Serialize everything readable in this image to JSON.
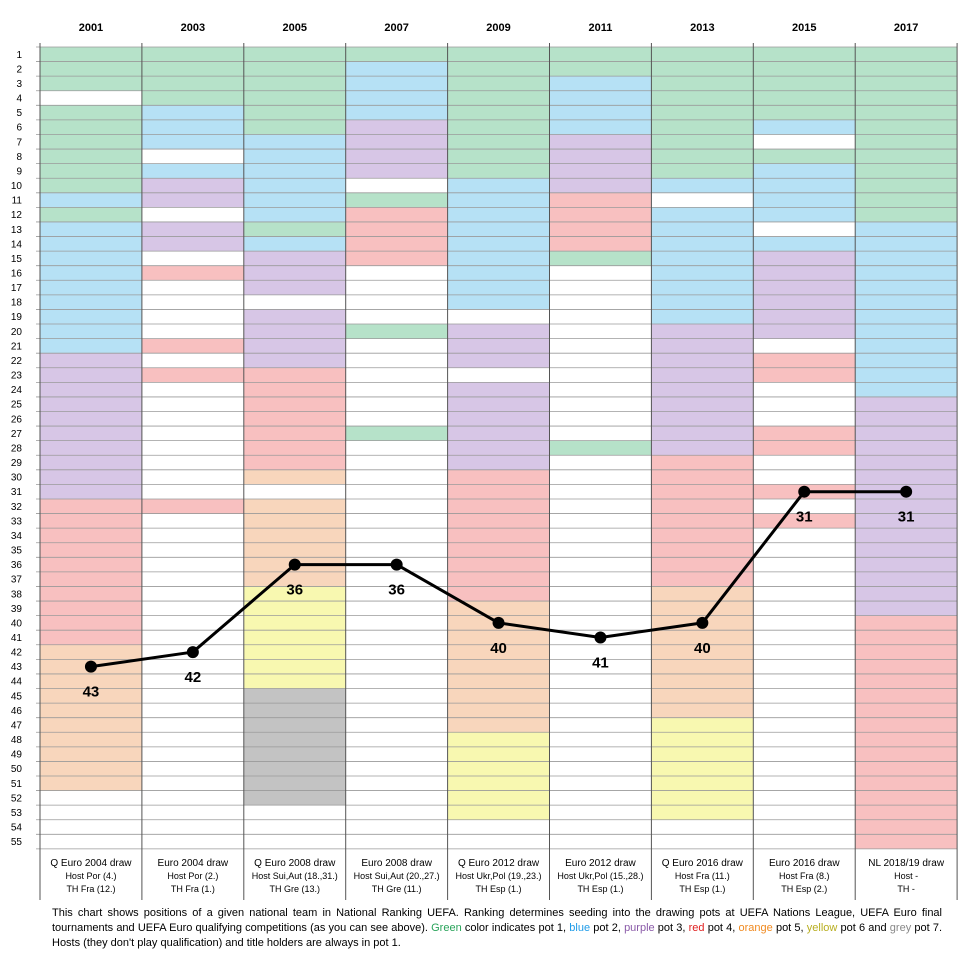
{
  "colors": {
    "pot1": "#b6e2c9",
    "pot2": "#b6e1f5",
    "pot3": "#d7c6e6",
    "pot4": "#f8c0c0",
    "pot5": "#f8d6bc",
    "pot6": "#f8f8b0",
    "pot7": "#c3c3c3",
    "none": "#ffffff",
    "line": "#000000"
  },
  "footer": {
    "p1": "This chart shows positions of a given national team in National Ranking UEFA. Ranking determines seeding into the drawing pots at UEFA Nations League, UEFA Euro final tournaments and UEFA Euro qualifying competitions (as you can see above). ",
    "green": "Green",
    "p2": " color indicates pot 1, ",
    "blue": "blue",
    "p3": " pot 2, ",
    "purple": "purple",
    "p4": " pot 3, ",
    "red": "red",
    "p5": " pot 4, ",
    "orange": "orange",
    "p6": " pot 5, ",
    "yellow": "yellow",
    "p7": " pot 6 and ",
    "grey": "grey",
    "p8": " pot 7. Hosts (they don't play qualification) and title holders are always in pot 1."
  },
  "chart_data": {
    "type": "line",
    "rank_min": 1,
    "rank_max": 55,
    "y_reversed": true,
    "grid": true,
    "years": [
      "2001",
      "2003",
      "2005",
      "2007",
      "2009",
      "2011",
      "2013",
      "2015",
      "2017"
    ],
    "draws": [
      {
        "title": "Q Euro 2004 draw",
        "host": "Host Por (4.)",
        "th": "TH Fra (12.)"
      },
      {
        "title": "Euro 2004 draw",
        "host": "Host Por (2.)",
        "th": "TH Fra (1.)"
      },
      {
        "title": "Q Euro 2008 draw",
        "host": "Host Sui,Aut (18.,31.)",
        "th": "TH Gre (13.)"
      },
      {
        "title": "Euro 2008 draw",
        "host": "Host Sui,Aut (20.,27.)",
        "th": "TH Gre (11.)"
      },
      {
        "title": "Q Euro 2012 draw",
        "host": "Host Ukr,Pol (19.,23.)",
        "th": "TH Esp (1.)"
      },
      {
        "title": "Euro 2012 draw",
        "host": "Host Ukr,Pol (15.,28.)",
        "th": "TH Esp (1.)"
      },
      {
        "title": "Q Euro 2016 draw",
        "host": "Host Fra (11.)",
        "th": "TH Esp (1.)"
      },
      {
        "title": "Euro 2016 draw",
        "host": "Host Fra (8.)",
        "th": "TH Esp (2.)"
      },
      {
        "title": "NL 2018/19 draw",
        "host": "Host -",
        "th": "TH -"
      }
    ],
    "series": [
      {
        "values": [
          43,
          42,
          36,
          36,
          40,
          41,
          40,
          31,
          31
        ],
        "labels": [
          "43",
          "42",
          "36",
          "36",
          "40",
          "41",
          "40",
          "31",
          "31"
        ]
      }
    ],
    "pots": [
      [
        [
          1,
          3,
          1
        ],
        [
          4,
          4,
          0
        ],
        [
          5,
          10,
          1
        ],
        [
          11,
          11,
          2
        ],
        [
          12,
          12,
          1
        ],
        [
          13,
          21,
          2
        ],
        [
          22,
          31,
          3
        ],
        [
          32,
          41,
          4
        ],
        [
          42,
          51,
          5
        ],
        [
          52,
          55,
          0
        ]
      ],
      [
        [
          1,
          4,
          1
        ],
        [
          5,
          7,
          2
        ],
        [
          8,
          8,
          0
        ],
        [
          9,
          9,
          2
        ],
        [
          10,
          11,
          3
        ],
        [
          12,
          12,
          0
        ],
        [
          13,
          14,
          3
        ],
        [
          15,
          15,
          0
        ],
        [
          16,
          16,
          4
        ],
        [
          17,
          20,
          0
        ],
        [
          21,
          21,
          4
        ],
        [
          22,
          22,
          0
        ],
        [
          23,
          23,
          4
        ],
        [
          24,
          31,
          0
        ],
        [
          32,
          32,
          4
        ],
        [
          33,
          55,
          0
        ]
      ],
      [
        [
          1,
          6,
          1
        ],
        [
          7,
          12,
          2
        ],
        [
          13,
          13,
          1
        ],
        [
          14,
          14,
          2
        ],
        [
          15,
          17,
          3
        ],
        [
          18,
          18,
          0
        ],
        [
          19,
          22,
          3
        ],
        [
          23,
          29,
          4
        ],
        [
          30,
          30,
          5
        ],
        [
          31,
          31,
          0
        ],
        [
          32,
          37,
          5
        ],
        [
          38,
          44,
          6
        ],
        [
          45,
          52,
          7
        ],
        [
          53,
          55,
          0
        ]
      ],
      [
        [
          1,
          1,
          1
        ],
        [
          2,
          5,
          2
        ],
        [
          6,
          9,
          3
        ],
        [
          10,
          10,
          0
        ],
        [
          11,
          11,
          1
        ],
        [
          12,
          15,
          4
        ],
        [
          16,
          19,
          0
        ],
        [
          20,
          20,
          1
        ],
        [
          21,
          26,
          0
        ],
        [
          27,
          27,
          1
        ],
        [
          28,
          55,
          0
        ]
      ],
      [
        [
          1,
          9,
          1
        ],
        [
          10,
          18,
          2
        ],
        [
          19,
          19,
          0
        ],
        [
          20,
          22,
          3
        ],
        [
          23,
          23,
          0
        ],
        [
          24,
          29,
          3
        ],
        [
          30,
          38,
          4
        ],
        [
          39,
          47,
          5
        ],
        [
          48,
          53,
          6
        ],
        [
          54,
          55,
          0
        ]
      ],
      [
        [
          1,
          2,
          1
        ],
        [
          3,
          6,
          2
        ],
        [
          7,
          10,
          3
        ],
        [
          11,
          14,
          4
        ],
        [
          15,
          15,
          1
        ],
        [
          16,
          27,
          0
        ],
        [
          28,
          28,
          1
        ],
        [
          29,
          55,
          0
        ]
      ],
      [
        [
          1,
          9,
          1
        ],
        [
          10,
          10,
          2
        ],
        [
          11,
          11,
          0
        ],
        [
          12,
          19,
          2
        ],
        [
          20,
          28,
          3
        ],
        [
          29,
          37,
          4
        ],
        [
          38,
          46,
          5
        ],
        [
          47,
          53,
          6
        ],
        [
          54,
          55,
          0
        ]
      ],
      [
        [
          1,
          5,
          1
        ],
        [
          6,
          6,
          2
        ],
        [
          7,
          7,
          0
        ],
        [
          8,
          8,
          1
        ],
        [
          9,
          12,
          2
        ],
        [
          13,
          13,
          0
        ],
        [
          14,
          14,
          2
        ],
        [
          15,
          20,
          3
        ],
        [
          21,
          21,
          0
        ],
        [
          22,
          23,
          4
        ],
        [
          24,
          26,
          0
        ],
        [
          27,
          28,
          4
        ],
        [
          29,
          30,
          0
        ],
        [
          31,
          31,
          4
        ],
        [
          32,
          32,
          0
        ],
        [
          33,
          33,
          4
        ],
        [
          34,
          55,
          0
        ]
      ],
      [
        [
          1,
          12,
          1
        ],
        [
          13,
          24,
          2
        ],
        [
          25,
          39,
          3
        ],
        [
          40,
          55,
          4
        ]
      ]
    ]
  }
}
